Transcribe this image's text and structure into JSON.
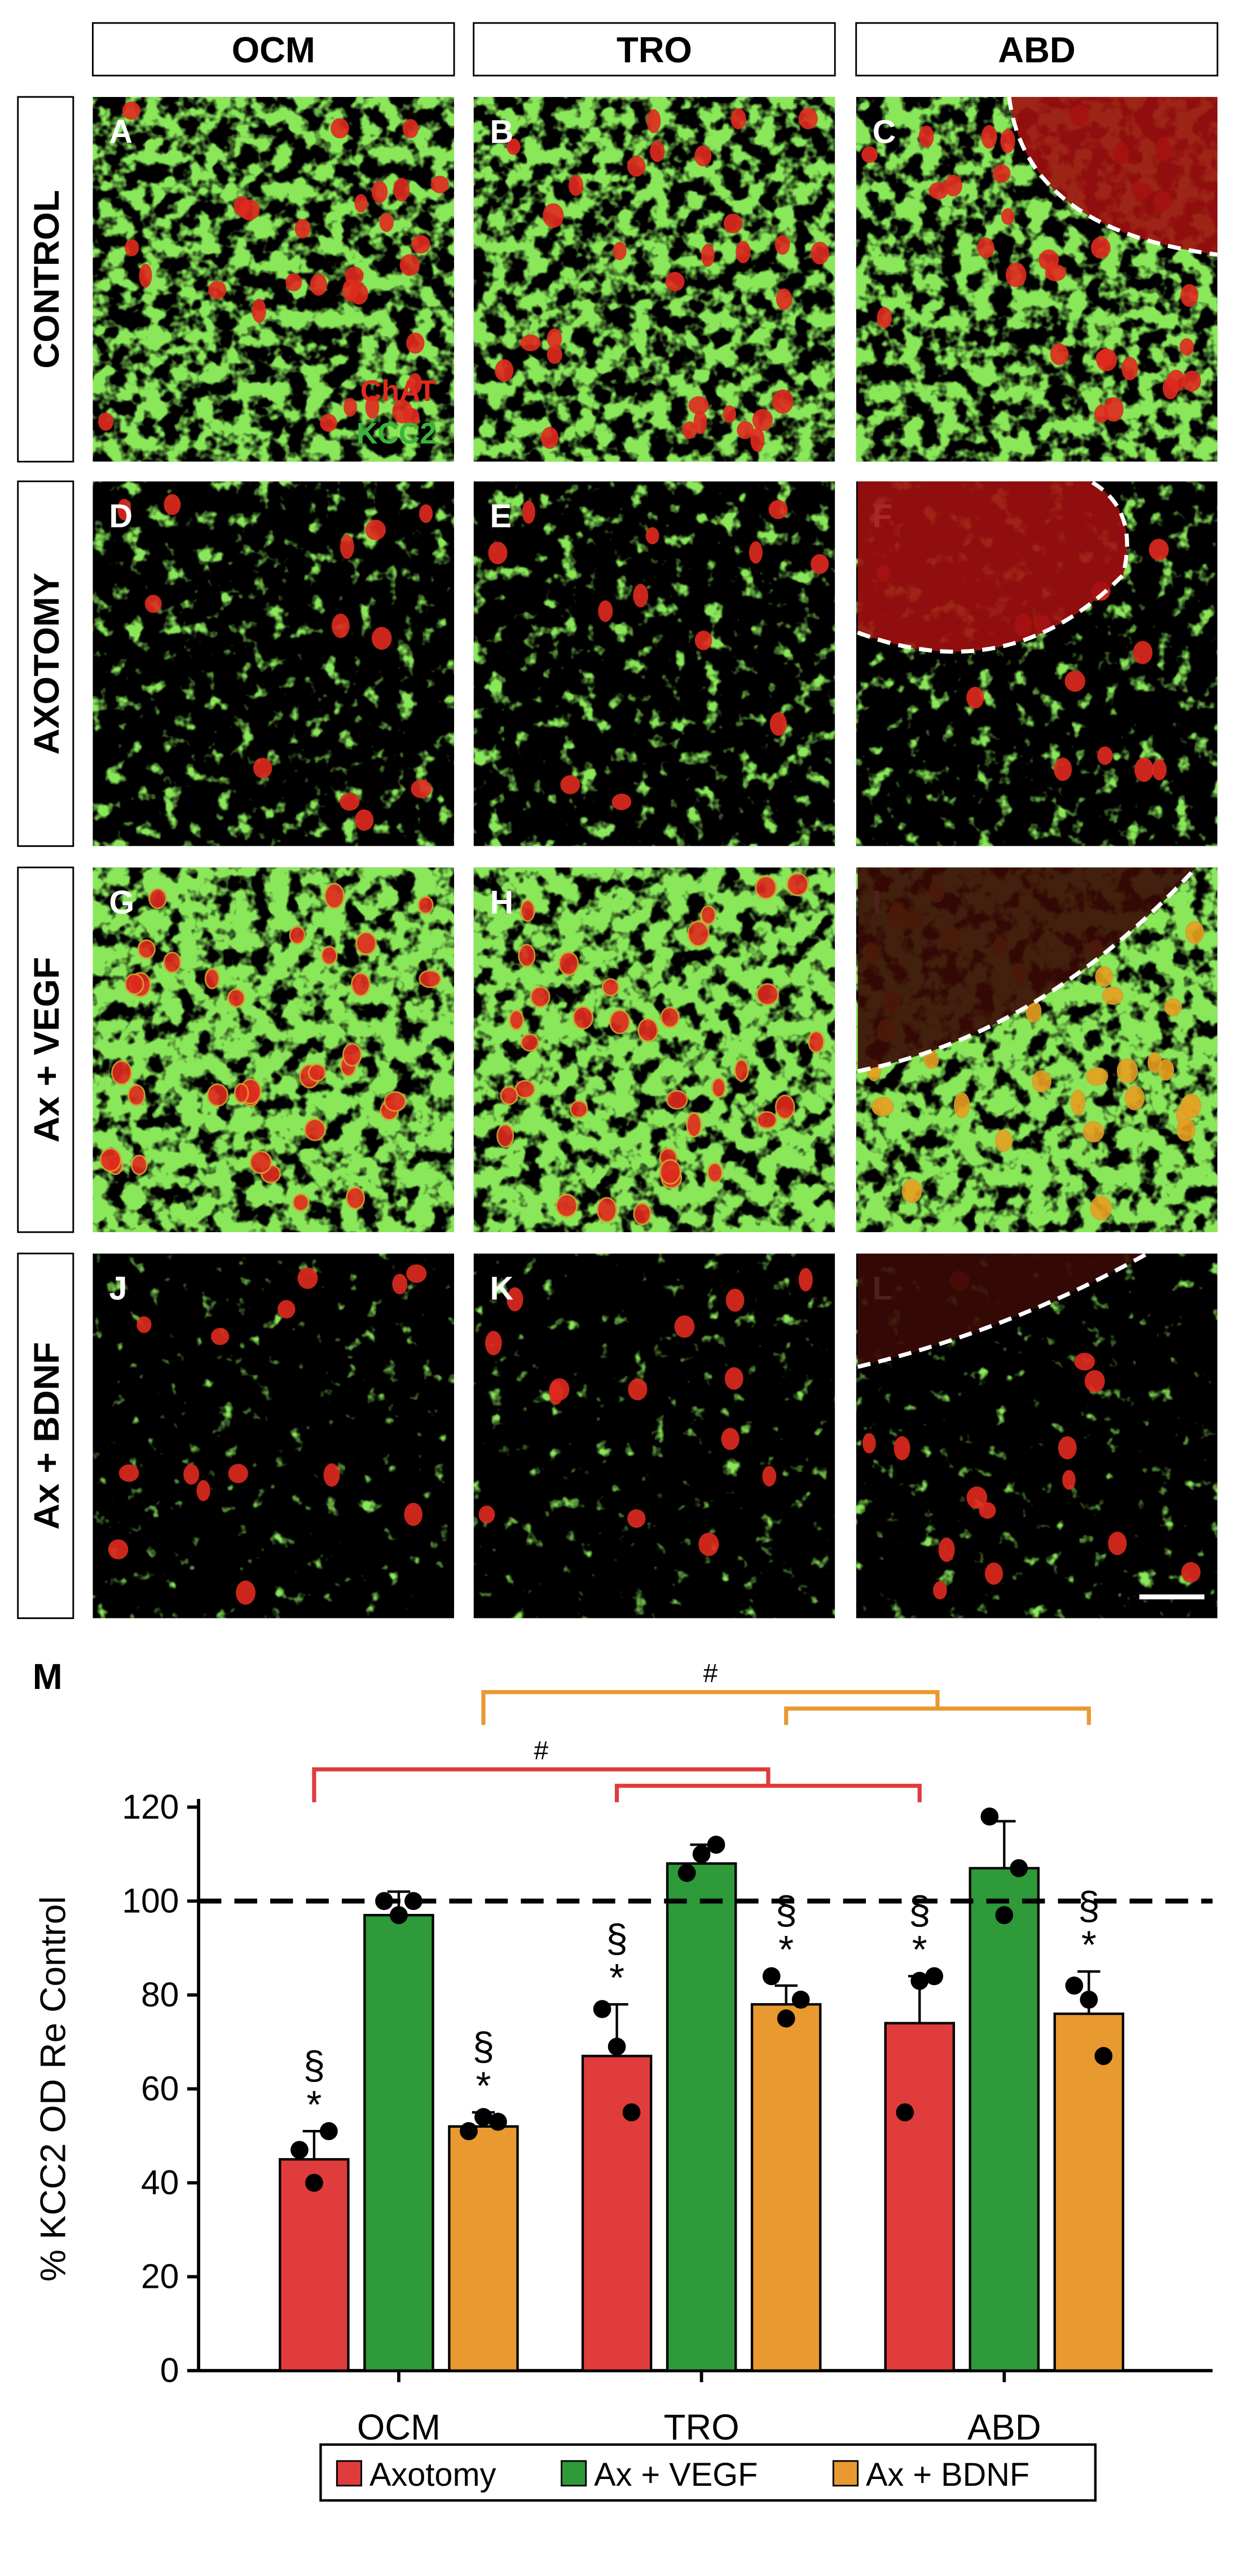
{
  "columns": [
    "OCM",
    "TRO",
    "ABD"
  ],
  "rows": [
    "CONTROL",
    "AXOTOMY",
    "Ax + VEGF",
    "Ax + BDNF"
  ],
  "panels": [
    "A",
    "B",
    "C",
    "D",
    "E",
    "F",
    "G",
    "H",
    "I",
    "J",
    "K",
    "L"
  ],
  "channels": [
    {
      "name": "ChAT",
      "color": "#e02a1e"
    },
    {
      "name": "KCC2",
      "color": "#3cb43c"
    }
  ],
  "chart_data": {
    "type": "bar",
    "panel_label": "M",
    "ylabel": "% KCC2 OD Re Control",
    "categories": [
      "OCM",
      "TRO",
      "ABD"
    ],
    "series": [
      {
        "name": "Axotomy",
        "color": "#e03c3c",
        "values": [
          45,
          67,
          74
        ],
        "errors": [
          6,
          11,
          10
        ],
        "points": [
          [
            47,
            51,
            40
          ],
          [
            77,
            55,
            69
          ],
          [
            55,
            84,
            83
          ]
        ],
        "markers": [
          [
            "§",
            "*"
          ],
          [
            "§",
            "*"
          ],
          [
            "§",
            "*"
          ]
        ]
      },
      {
        "name": "Ax + VEGF",
        "color": "#2e9a3a",
        "values": [
          97,
          108,
          107
        ],
        "errors": [
          5,
          4,
          10
        ],
        "points": [
          [
            100,
            100,
            97
          ],
          [
            106,
            112,
            110
          ],
          [
            118,
            107,
            97
          ]
        ]
      },
      {
        "name": "Ax + BDNF",
        "color": "#e89a30",
        "values": [
          52,
          78,
          76
        ],
        "errors": [
          3,
          4,
          9
        ],
        "points": [
          [
            51,
            53,
            54
          ],
          [
            84,
            79,
            75
          ],
          [
            82,
            67,
            79
          ]
        ],
        "markers": [
          [
            "§",
            "*"
          ],
          [
            "§",
            "*"
          ],
          [
            "§",
            "*"
          ]
        ]
      }
    ],
    "reference_line": 100,
    "brackets": [
      {
        "series": 0,
        "color": "#e03c3c",
        "label": "#"
      },
      {
        "series": 2,
        "color": "#e89a30",
        "label": "#"
      }
    ],
    "ylim": [
      0,
      120
    ],
    "yticks": [
      0,
      20,
      40,
      60,
      80,
      100,
      120
    ],
    "legend": "bottom"
  }
}
